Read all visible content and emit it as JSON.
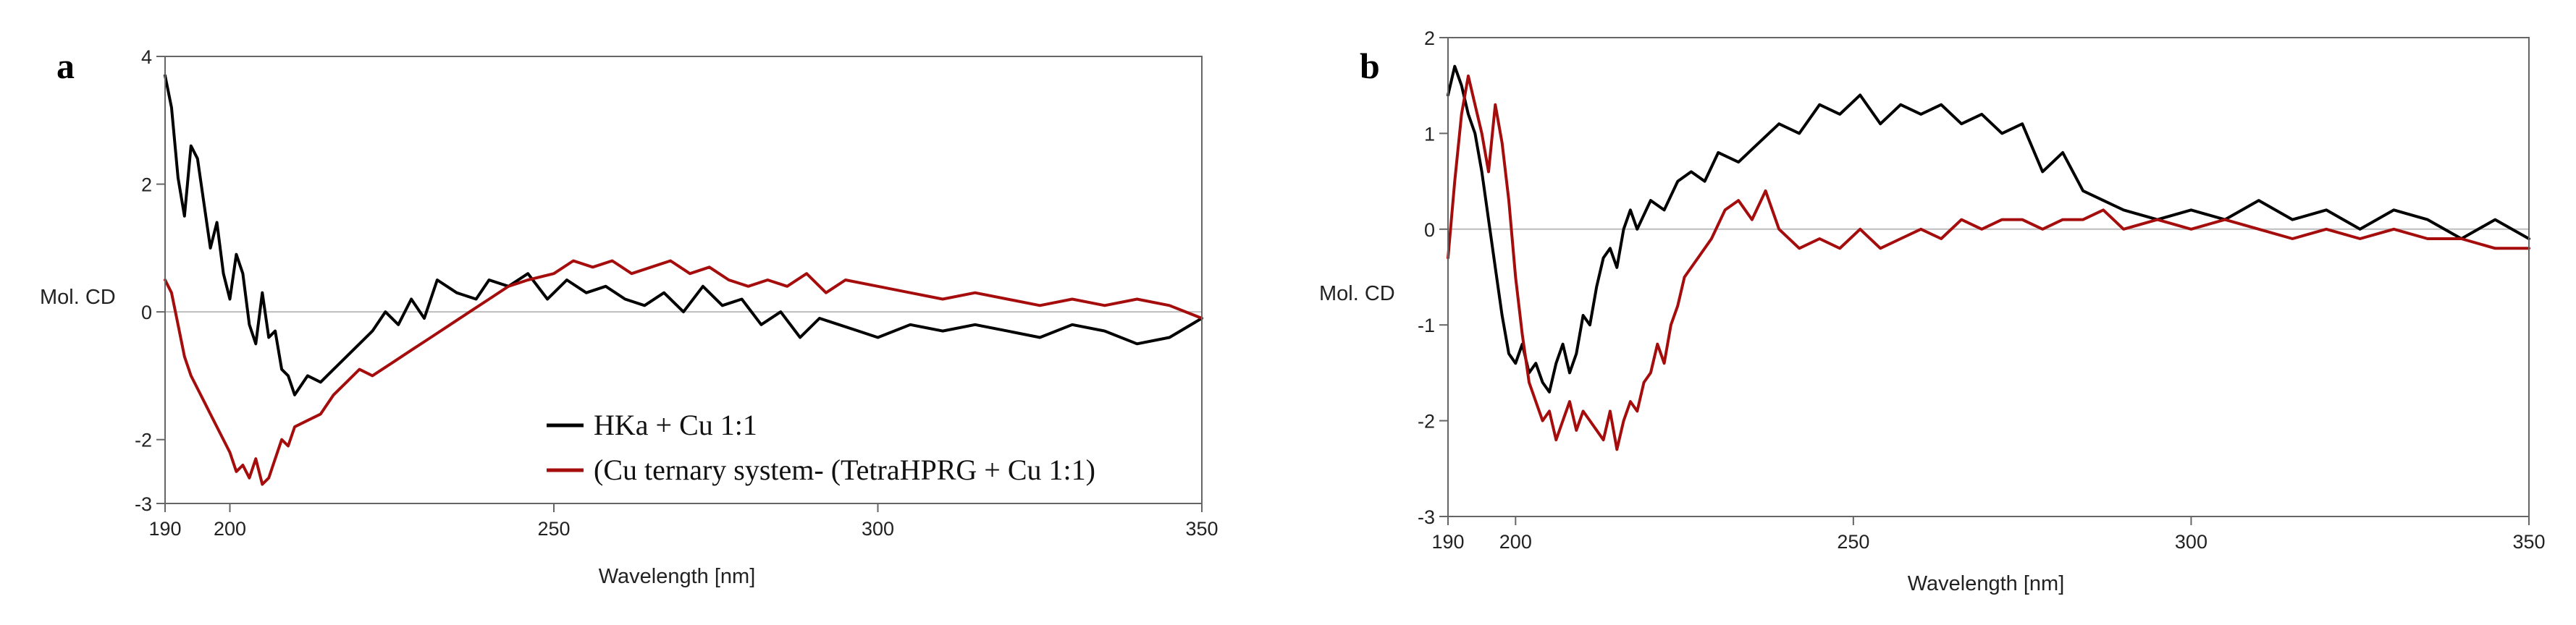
{
  "colors": {
    "series_black": "#000000",
    "series_red": "#a50d0d"
  },
  "chart_data": [
    {
      "type": "line",
      "panel_label": "a",
      "xlabel": "Wavelength [nm]",
      "ylabel": "Mol. CD",
      "xlim": [
        190,
        350
      ],
      "ylim": [
        -3,
        4
      ],
      "xticks": [
        190,
        200,
        250,
        300,
        350
      ],
      "yticks": [
        -3,
        -2,
        0,
        2,
        4
      ],
      "grid": false,
      "legend_position": "bottom-right",
      "series": [
        {
          "name": "HKa + Cu 1:1",
          "color": "#000000",
          "x": [
            190,
            191,
            192,
            193,
            194,
            195,
            196,
            197,
            198,
            199,
            200,
            201,
            202,
            203,
            204,
            205,
            206,
            207,
            208,
            209,
            210,
            212,
            214,
            216,
            218,
            220,
            222,
            224,
            226,
            228,
            230,
            232,
            235,
            238,
            240,
            243,
            246,
            249,
            252,
            255,
            258,
            261,
            264,
            267,
            270,
            273,
            276,
            279,
            282,
            285,
            288,
            291,
            294,
            297,
            300,
            305,
            310,
            315,
            320,
            325,
            330,
            335,
            340,
            345,
            350
          ],
          "values": [
            3.7,
            3.2,
            2.1,
            1.5,
            2.6,
            2.4,
            1.7,
            1.0,
            1.4,
            0.6,
            0.2,
            0.9,
            0.6,
            -0.2,
            -0.5,
            0.3,
            -0.4,
            -0.3,
            -0.9,
            -1.0,
            -1.3,
            -1.0,
            -1.1,
            -0.9,
            -0.7,
            -0.5,
            -0.3,
            0.0,
            -0.2,
            0.2,
            -0.1,
            0.5,
            0.3,
            0.2,
            0.5,
            0.4,
            0.6,
            0.2,
            0.5,
            0.3,
            0.4,
            0.2,
            0.1,
            0.3,
            0.0,
            0.4,
            0.1,
            0.2,
            -0.2,
            0.0,
            -0.4,
            -0.1,
            -0.2,
            -0.3,
            -0.4,
            -0.2,
            -0.3,
            -0.2,
            -0.3,
            -0.4,
            -0.2,
            -0.3,
            -0.5,
            -0.4,
            -0.1
          ]
        },
        {
          "name": "(Cu ternary system- (TetraHPRG + Cu 1:1)",
          "color": "#a50d0d",
          "x": [
            190,
            191,
            192,
            193,
            194,
            195,
            196,
            197,
            198,
            200,
            201,
            202,
            203,
            204,
            205,
            206,
            207,
            208,
            209,
            210,
            212,
            214,
            216,
            218,
            220,
            222,
            225,
            228,
            231,
            234,
            237,
            240,
            243,
            246,
            250,
            253,
            256,
            259,
            262,
            265,
            268,
            271,
            274,
            277,
            280,
            283,
            286,
            289,
            292,
            295,
            300,
            305,
            310,
            315,
            320,
            325,
            330,
            335,
            340,
            345,
            350
          ],
          "values": [
            0.5,
            0.3,
            -0.2,
            -0.7,
            -1.0,
            -1.2,
            -1.4,
            -1.6,
            -1.8,
            -2.2,
            -2.5,
            -2.4,
            -2.6,
            -2.3,
            -2.7,
            -2.6,
            -2.3,
            -2.0,
            -2.1,
            -1.8,
            -1.7,
            -1.6,
            -1.3,
            -1.1,
            -0.9,
            -1.0,
            -0.8,
            -0.6,
            -0.4,
            -0.2,
            0.0,
            0.2,
            0.4,
            0.5,
            0.6,
            0.8,
            0.7,
            0.8,
            0.6,
            0.7,
            0.8,
            0.6,
            0.7,
            0.5,
            0.4,
            0.5,
            0.4,
            0.6,
            0.3,
            0.5,
            0.4,
            0.3,
            0.2,
            0.3,
            0.2,
            0.1,
            0.2,
            0.1,
            0.2,
            0.1,
            -0.1
          ]
        }
      ]
    },
    {
      "type": "line",
      "panel_label": "b",
      "xlabel": "Wavelength [nm]",
      "ylabel": "Mol. CD",
      "xlim": [
        190,
        350
      ],
      "ylim": [
        -3,
        2
      ],
      "xticks": [
        190,
        200,
        250,
        300,
        350
      ],
      "yticks": [
        -3,
        -2,
        -1,
        0,
        1,
        2
      ],
      "grid": false,
      "series": [
        {
          "name": "HKa + Cu 1:1",
          "color": "#000000",
          "x": [
            190,
            191,
            192,
            193,
            194,
            195,
            196,
            197,
            198,
            199,
            200,
            201,
            202,
            203,
            204,
            205,
            206,
            207,
            208,
            209,
            210,
            211,
            212,
            213,
            214,
            215,
            216,
            217,
            218,
            220,
            222,
            224,
            226,
            228,
            230,
            233,
            236,
            239,
            242,
            245,
            248,
            251,
            254,
            257,
            260,
            263,
            266,
            269,
            272,
            275,
            278,
            281,
            284,
            287,
            290,
            295,
            300,
            305,
            310,
            315,
            320,
            325,
            330,
            335,
            340,
            345,
            350
          ],
          "values": [
            1.4,
            1.7,
            1.5,
            1.2,
            1.0,
            0.6,
            0.1,
            -0.4,
            -0.9,
            -1.3,
            -1.4,
            -1.2,
            -1.5,
            -1.4,
            -1.6,
            -1.7,
            -1.4,
            -1.2,
            -1.5,
            -1.3,
            -0.9,
            -1.0,
            -0.6,
            -0.3,
            -0.2,
            -0.4,
            0.0,
            0.2,
            0.0,
            0.3,
            0.2,
            0.5,
            0.6,
            0.5,
            0.8,
            0.7,
            0.9,
            1.1,
            1.0,
            1.3,
            1.2,
            1.4,
            1.1,
            1.3,
            1.2,
            1.3,
            1.1,
            1.2,
            1.0,
            1.1,
            0.6,
            0.8,
            0.4,
            0.3,
            0.2,
            0.1,
            0.2,
            0.1,
            0.3,
            0.1,
            0.2,
            0.0,
            0.2,
            0.1,
            -0.1,
            0.1,
            -0.1
          ]
        },
        {
          "name": "(Cu ternary system- (TetraHPRG + Cu 1:1)",
          "color": "#a50d0d",
          "x": [
            190,
            191,
            192,
            193,
            194,
            195,
            196,
            197,
            198,
            199,
            200,
            201,
            202,
            203,
            204,
            205,
            206,
            207,
            208,
            209,
            210,
            211,
            212,
            213,
            214,
            215,
            216,
            217,
            218,
            219,
            220,
            221,
            222,
            223,
            224,
            225,
            227,
            229,
            231,
            233,
            235,
            237,
            239,
            242,
            245,
            248,
            251,
            254,
            257,
            260,
            263,
            266,
            269,
            272,
            275,
            278,
            281,
            284,
            287,
            290,
            295,
            300,
            305,
            310,
            315,
            320,
            325,
            330,
            335,
            340,
            345,
            350
          ],
          "values": [
            -0.3,
            0.5,
            1.2,
            1.6,
            1.3,
            1.0,
            0.6,
            1.3,
            0.9,
            0.3,
            -0.5,
            -1.1,
            -1.6,
            -1.8,
            -2.0,
            -1.9,
            -2.2,
            -2.0,
            -1.8,
            -2.1,
            -1.9,
            -2.0,
            -2.1,
            -2.2,
            -1.9,
            -2.3,
            -2.0,
            -1.8,
            -1.9,
            -1.6,
            -1.5,
            -1.2,
            -1.4,
            -1.0,
            -0.8,
            -0.5,
            -0.3,
            -0.1,
            0.2,
            0.3,
            0.1,
            0.4,
            0.0,
            -0.2,
            -0.1,
            -0.2,
            0.0,
            -0.2,
            -0.1,
            0.0,
            -0.1,
            0.1,
            0.0,
            0.1,
            0.1,
            0.0,
            0.1,
            0.1,
            0.2,
            0.0,
            0.1,
            0.0,
            0.1,
            0.0,
            -0.1,
            0.0,
            -0.1,
            0.0,
            -0.1,
            -0.1,
            -0.2,
            -0.2
          ]
        }
      ]
    }
  ]
}
